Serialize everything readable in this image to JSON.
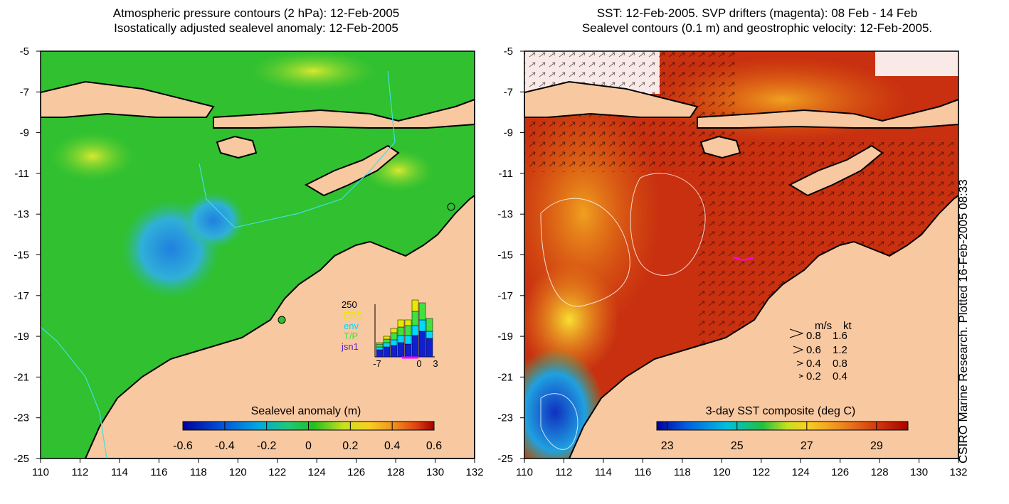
{
  "left_panel": {
    "title_line1": "Atmospheric pressure contours (2 hPa): 12-Feb-2005",
    "title_line2": "Isostatically adjusted sealevel anomaly: 12-Feb-2005",
    "colorbar": {
      "label": "Sealevel anomaly (m)",
      "ticks": [
        "-0.6",
        "-0.4",
        "-0.2",
        "0",
        "0.2",
        "0.4",
        "0.6"
      ],
      "colors": [
        "#00009a",
        "#0050d8",
        "#00a8e0",
        "#20c878",
        "#20c020",
        "#c8e020",
        "#f8d020",
        "#f09020",
        "#e04010",
        "#a00000"
      ]
    },
    "inset": {
      "ymax_label": "250",
      "legend": [
        "ERS",
        "env",
        "T/P",
        "jsn1"
      ],
      "legend_colors": [
        "#e8e800",
        "#00d8ff",
        "#40e040",
        "#6020c0"
      ],
      "xticks": [
        "-7",
        "0",
        "3"
      ]
    }
  },
  "right_panel": {
    "title_line1": "SST: 12-Feb-2005. SVP drifters (magenta): 08 Feb - 14 Feb",
    "title_line2": "Sealevel contours (0.1 m) and geostrophic velocity: 12-Feb-2005.",
    "colorbar": {
      "label": "3-day SST composite (deg C)",
      "ticks": [
        "23",
        "25",
        "27",
        "29"
      ],
      "colors": [
        "#00009a",
        "#0060e0",
        "#00c0e0",
        "#20c040",
        "#c8e020",
        "#f8d020",
        "#f09020",
        "#d84010",
        "#a80000"
      ]
    },
    "velocity_legend": {
      "header_ms": "m/s",
      "header_kt": "kt",
      "rows": [
        {
          "ms": "0.8",
          "kt": "1.6"
        },
        {
          "ms": "0.6",
          "kt": "1.2"
        },
        {
          "ms": "0.4",
          "kt": "0.8"
        },
        {
          "ms": "0.2",
          "kt": "0.4"
        }
      ]
    },
    "credit": "CSIRO Marine Research. Plotted 16-Feb-2005 08:33"
  },
  "axes": {
    "lon_ticks": [
      "110",
      "112",
      "114",
      "116",
      "118",
      "120",
      "122",
      "124",
      "126",
      "128",
      "130",
      "132"
    ],
    "lat_ticks": [
      "-5",
      "-7",
      "-9",
      "-11",
      "-13",
      "-15",
      "-17",
      "-19",
      "-21",
      "-23",
      "-25"
    ]
  },
  "colors": {
    "land": "#f8c8a0",
    "ocean_left": "#30c030",
    "ocean_right": "#c83010",
    "coast": "#000000",
    "contour": "#40e0e0"
  }
}
